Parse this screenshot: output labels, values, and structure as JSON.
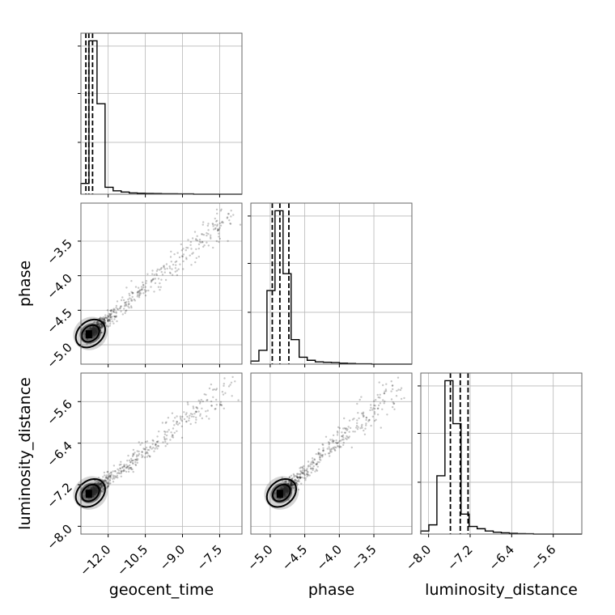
{
  "chart_data": {
    "type": "scatter",
    "title": "",
    "parameters": [
      {
        "name": "geocent_time",
        "label": "geocent_time",
        "ticks": [
          -12.0,
          -10.5,
          -9.0,
          -7.5
        ],
        "tick_labels": [
          "−12.0",
          "−10.5",
          "−9.0",
          "−7.5"
        ],
        "range": [
          -13.1,
          -6.6
        ]
      },
      {
        "name": "phase",
        "label": "phase",
        "ticks": [
          -5.0,
          -4.5,
          -4.0,
          -3.5
        ],
        "tick_labels": [
          "−5.0",
          "−4.5",
          "−4.0",
          "−3.5"
        ],
        "range": [
          -5.28,
          -2.95
        ]
      },
      {
        "name": "luminosity_distance",
        "label": "luminosity_distance",
        "ticks": [
          -8.0,
          -7.2,
          -6.4,
          -5.6
        ],
        "tick_labels": [
          "−8.0",
          "−7.2",
          "−6.4",
          "−5.6"
        ],
        "range": [
          -8.15,
          -5.05
        ]
      }
    ],
    "histograms": [
      {
        "parameter": "geocent_time",
        "bin_edges": [
          -13.1,
          -12.775,
          -12.45,
          -12.125,
          -11.8,
          -11.475,
          -11.15,
          -10.825,
          -10.5,
          -10.175,
          -9.85,
          -9.525,
          -9.2,
          -8.875,
          -8.55,
          -8.225,
          -7.9,
          -7.575,
          -7.25,
          -6.925,
          -6.6
        ],
        "counts": [
          70,
          1000,
          590,
          45,
          22,
          14,
          8,
          6,
          5,
          4,
          3,
          3,
          2,
          2,
          0,
          0,
          0,
          0,
          0,
          0
        ],
        "quantiles": [
          -12.9,
          -12.78,
          -12.63
        ]
      },
      {
        "parameter": "phase",
        "bin_edges": [
          -5.28,
          -5.1635,
          -5.047,
          -4.9305,
          -4.814,
          -4.6975,
          -4.581,
          -4.4645,
          -4.348,
          -4.2315,
          -4.115,
          -3.9985,
          -3.882,
          -3.7655,
          -3.649,
          -3.5325,
          -3.416,
          -3.2995,
          -3.183,
          -3.0665,
          -2.95
        ],
        "counts": [
          20,
          90,
          480,
          1000,
          590,
          160,
          45,
          25,
          15,
          12,
          10,
          6,
          4,
          2,
          2,
          0,
          0,
          0,
          0,
          0
        ],
        "quantiles": [
          -4.97,
          -4.86,
          -4.73
        ]
      },
      {
        "parameter": "luminosity_distance",
        "bin_edges": [
          -8.15,
          -7.995,
          -7.84,
          -7.685,
          -7.53,
          -7.375,
          -7.22,
          -7.065,
          -6.91,
          -6.755,
          -6.6,
          -6.445,
          -6.29,
          -6.135,
          -5.98,
          -5.825,
          -5.67,
          -5.515,
          -5.36,
          -5.205,
          -5.05
        ],
        "counts": [
          20,
          60,
          380,
          1000,
          720,
          130,
          50,
          35,
          20,
          12,
          8,
          5,
          3,
          2,
          0,
          0,
          0,
          0,
          0,
          0
        ],
        "quantiles": [
          -7.58,
          -7.39,
          -7.24
        ]
      }
    ],
    "scatter_panels": [
      {
        "x": "geocent_time",
        "y": "phase"
      },
      {
        "x": "geocent_time",
        "y": "luminosity_distance"
      },
      {
        "x": "phase",
        "y": "luminosity_distance"
      }
    ],
    "grid": true,
    "legend": "none"
  }
}
